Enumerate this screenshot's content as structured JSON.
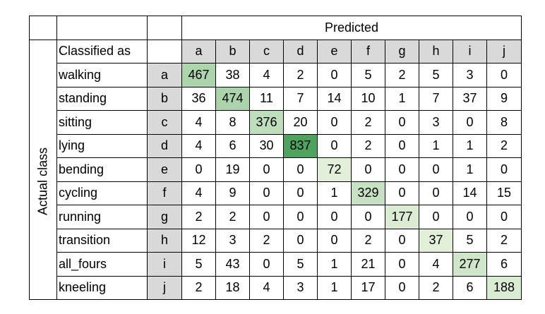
{
  "header": {
    "predicted_label": "Predicted",
    "classified_as_label": "Classified as",
    "actual_label": "Actual class"
  },
  "columns": [
    "a",
    "b",
    "c",
    "d",
    "e",
    "f",
    "g",
    "h",
    "i",
    "j"
  ],
  "rows": [
    {
      "name": "walking",
      "code": "a",
      "values": [
        467,
        38,
        4,
        2,
        0,
        5,
        2,
        5,
        3,
        0
      ]
    },
    {
      "name": "standing",
      "code": "b",
      "values": [
        36,
        474,
        11,
        7,
        14,
        10,
        1,
        7,
        37,
        9
      ]
    },
    {
      "name": "sitting",
      "code": "c",
      "values": [
        4,
        8,
        376,
        20,
        0,
        2,
        0,
        3,
        0,
        8
      ]
    },
    {
      "name": "lying",
      "code": "d",
      "values": [
        4,
        6,
        30,
        837,
        0,
        2,
        0,
        1,
        1,
        2
      ]
    },
    {
      "name": "bending",
      "code": "e",
      "values": [
        0,
        19,
        0,
        0,
        72,
        0,
        0,
        0,
        1,
        0
      ]
    },
    {
      "name": "cycling",
      "code": "f",
      "values": [
        4,
        9,
        0,
        0,
        1,
        329,
        0,
        0,
        14,
        15
      ]
    },
    {
      "name": "running",
      "code": "g",
      "values": [
        2,
        2,
        0,
        0,
        0,
        0,
        177,
        0,
        0,
        0
      ]
    },
    {
      "name": "transition",
      "code": "h",
      "values": [
        12,
        3,
        2,
        0,
        0,
        2,
        0,
        37,
        5,
        2
      ]
    },
    {
      "name": "all_fours",
      "code": "i",
      "values": [
        5,
        43,
        0,
        5,
        1,
        21,
        0,
        4,
        277,
        6
      ]
    },
    {
      "name": "kneeling",
      "code": "j",
      "values": [
        2,
        18,
        4,
        3,
        1,
        17,
        0,
        2,
        6,
        188
      ]
    }
  ],
  "colors": {
    "code_background": "#d9d9d9",
    "diagonal_light": "#e2f0d9",
    "diagonal_dark": "#4ea45e"
  }
}
